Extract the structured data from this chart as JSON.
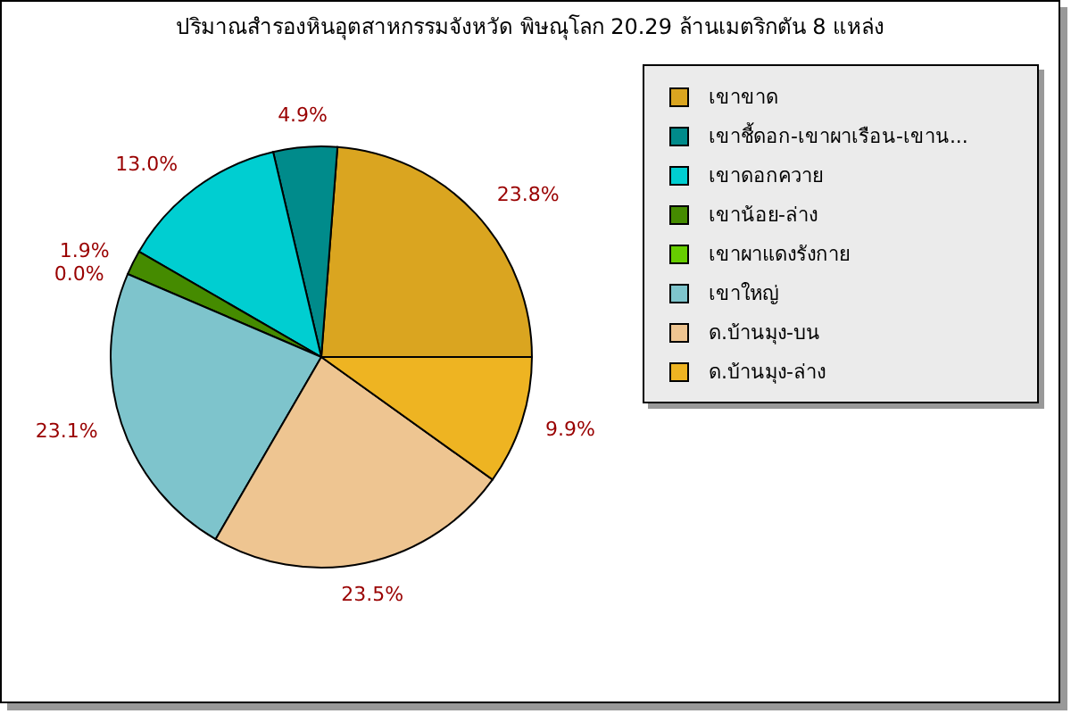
{
  "chart_data": {
    "type": "pie",
    "title": "ปริมาณสำรองหินอุตสาหกรรมจังหวัด พิษณุโลก 20.29 ล้านเมตริกตัน 8 แหล่ง",
    "categories": [
      "เขาขาด",
      "เขาชี้ดอก-เขาผาเรือน-เขาน...",
      "เขาดอกควาย",
      "เขาน้อย-ล่าง",
      "เขาผาแดงรังกาย",
      "เขาใหญ่",
      "ด.บ้านมุง-บน",
      "ด.บ้านมุง-ล่าง"
    ],
    "values": [
      23.8,
      4.9,
      13.0,
      1.9,
      0.0,
      23.1,
      23.5,
      9.9
    ],
    "colors": [
      "#daa520",
      "#008b8b",
      "#00ced1",
      "#458b00",
      "#66cd00",
      "#7ec4cc",
      "#eec591",
      "#eeb422"
    ],
    "value_labels": [
      "23.8%",
      "4.9%",
      "13.0%",
      "1.9%",
      "0.0%",
      "23.1%",
      "23.5%",
      "9.9%"
    ],
    "legend": "top right"
  }
}
